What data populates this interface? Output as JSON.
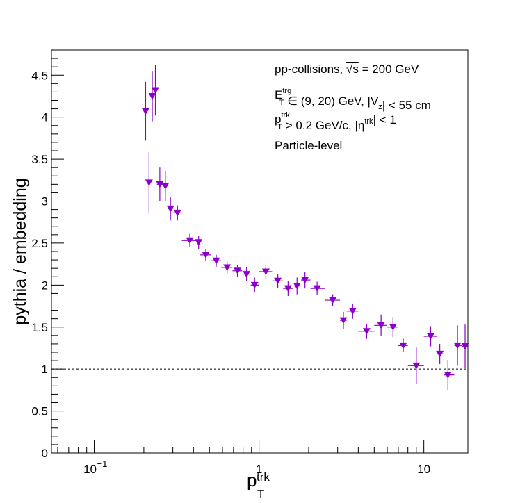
{
  "chart_data": {
    "type": "scatter",
    "title": "",
    "ylabel": "pythia / embedding",
    "xlabel": {
      "main": "p",
      "sub": "T",
      "sup": "trk"
    },
    "x_scale": "log",
    "xlim": [
      0.055,
      18.5
    ],
    "ylim": [
      0,
      4.8
    ],
    "x_ticks": [
      {
        "value": 0.1,
        "label": "10",
        "exp": "−1"
      },
      {
        "value": 1,
        "label": "1",
        "exp": ""
      },
      {
        "value": 10,
        "label": "10",
        "exp": ""
      }
    ],
    "y_ticks": [
      {
        "value": 0,
        "label": "0"
      },
      {
        "value": 0.5,
        "label": "0.5"
      },
      {
        "value": 1,
        "label": "1"
      },
      {
        "value": 1.5,
        "label": "1.5"
      },
      {
        "value": 2,
        "label": "2"
      },
      {
        "value": 2.5,
        "label": "2.5"
      },
      {
        "value": 3,
        "label": "3"
      },
      {
        "value": 3.5,
        "label": "3.5"
      },
      {
        "value": 4,
        "label": "4"
      },
      {
        "value": 4.5,
        "label": "4.5"
      }
    ],
    "reference_line": {
      "y": 1,
      "style": "dashed"
    },
    "marker": {
      "shape": "triangle-down",
      "color": "#8a00c8"
    },
    "points": [
      {
        "x": 0.205,
        "y": 4.07,
        "err": 0.35,
        "xerr": [
          0.2,
          0.21
        ]
      },
      {
        "x": 0.215,
        "y": 3.22,
        "err": 0.36,
        "xerr": [
          0.21,
          0.22
        ]
      },
      {
        "x": 0.225,
        "y": 4.25,
        "err": 0.3,
        "xerr": [
          0.22,
          0.23
        ]
      },
      {
        "x": 0.235,
        "y": 4.32,
        "err": 0.3,
        "xerr": [
          0.23,
          0.24
        ]
      },
      {
        "x": 0.25,
        "y": 3.2,
        "err": 0.2,
        "xerr": [
          0.24,
          0.26
        ]
      },
      {
        "x": 0.27,
        "y": 3.18,
        "err": 0.18,
        "xerr": [
          0.26,
          0.28
        ]
      },
      {
        "x": 0.29,
        "y": 2.91,
        "err": 0.14,
        "xerr": [
          0.28,
          0.3
        ]
      },
      {
        "x": 0.32,
        "y": 2.86,
        "err": 0.09,
        "xerr": [
          0.3,
          0.34
        ]
      },
      {
        "x": 0.38,
        "y": 2.53,
        "err": 0.08,
        "xerr": [
          0.34,
          0.42
        ]
      },
      {
        "x": 0.43,
        "y": 2.51,
        "err": 0.08,
        "xerr": [
          0.42,
          0.44
        ]
      },
      {
        "x": 0.475,
        "y": 2.36,
        "err": 0.07,
        "xerr": [
          0.44,
          0.51
        ]
      },
      {
        "x": 0.55,
        "y": 2.29,
        "err": 0.07,
        "xerr": [
          0.51,
          0.59
        ]
      },
      {
        "x": 0.64,
        "y": 2.21,
        "err": 0.07,
        "xerr": [
          0.59,
          0.69
        ]
      },
      {
        "x": 0.74,
        "y": 2.17,
        "err": 0.07,
        "xerr": [
          0.69,
          0.79
        ]
      },
      {
        "x": 0.84,
        "y": 2.13,
        "err": 0.08,
        "xerr": [
          0.79,
          0.89
        ]
      },
      {
        "x": 0.94,
        "y": 2.0,
        "err": 0.09,
        "xerr": [
          0.89,
          1.0
        ]
      },
      {
        "x": 1.1,
        "y": 2.16,
        "err": 0.08,
        "xerr": [
          1.0,
          1.2
        ]
      },
      {
        "x": 1.3,
        "y": 2.05,
        "err": 0.08,
        "xerr": [
          1.2,
          1.4
        ]
      },
      {
        "x": 1.5,
        "y": 1.96,
        "err": 0.09,
        "xerr": [
          1.4,
          1.6
        ]
      },
      {
        "x": 1.7,
        "y": 1.99,
        "err": 0.1,
        "xerr": [
          1.6,
          1.8
        ]
      },
      {
        "x": 1.9,
        "y": 2.06,
        "err": 0.1,
        "xerr": [
          1.8,
          2.05
        ]
      },
      {
        "x": 2.25,
        "y": 1.96,
        "err": 0.08,
        "xerr": [
          2.05,
          2.5
        ]
      },
      {
        "x": 2.8,
        "y": 1.82,
        "err": 0.07,
        "xerr": [
          2.5,
          3.1
        ]
      },
      {
        "x": 3.25,
        "y": 1.58,
        "err": 0.1,
        "xerr": [
          3.1,
          3.4
        ]
      },
      {
        "x": 3.7,
        "y": 1.69,
        "err": 0.09,
        "xerr": [
          3.4,
          4.0
        ]
      },
      {
        "x": 4.5,
        "y": 1.45,
        "err": 0.09,
        "xerr": [
          4.0,
          5.0
        ]
      },
      {
        "x": 5.5,
        "y": 1.52,
        "err": 0.13,
        "xerr": [
          5.0,
          6.0
        ]
      },
      {
        "x": 6.5,
        "y": 1.5,
        "err": 0.12,
        "xerr": [
          6.0,
          7.0
        ]
      },
      {
        "x": 7.5,
        "y": 1.28,
        "err": 0.08,
        "xerr": [
          7.0,
          8.0
        ]
      },
      {
        "x": 9.0,
        "y": 1.04,
        "err": 0.22,
        "xerr": [
          8.0,
          10.0
        ]
      },
      {
        "x": 11.0,
        "y": 1.39,
        "err": 0.12,
        "xerr": [
          10.0,
          12.0
        ]
      },
      {
        "x": 12.5,
        "y": 1.18,
        "err": 0.12,
        "xerr": [
          12.0,
          13.3
        ]
      },
      {
        "x": 14.0,
        "y": 0.93,
        "err": 0.18,
        "xerr": [
          13.3,
          15.3
        ]
      },
      {
        "x": 16.0,
        "y": 1.28,
        "err": 0.24,
        "xerr": [
          15.3,
          17.0
        ]
      },
      {
        "x": 17.8,
        "y": 1.27,
        "err": 0.26,
        "xerr": [
          17.0,
          18.5
        ]
      }
    ],
    "annotations": [
      {
        "id": "collisions",
        "parts": [
          {
            "t": "pp-collisions, "
          },
          {
            "t": "√s",
            "over": true
          },
          {
            "t": " = 200 GeV"
          }
        ]
      },
      {
        "id": "et-cut",
        "parts": [
          {
            "t": "E"
          },
          {
            "t": "T",
            "sub": true,
            "sup": "trg"
          },
          {
            "t": " ∈ (9, 20) GeV, |V"
          },
          {
            "t": "z",
            "sub": true
          },
          {
            "t": "| < 55 cm"
          }
        ]
      },
      {
        "id": "pt-cut",
        "parts": [
          {
            "t": "p"
          },
          {
            "t": "T",
            "sub": true,
            "sup": "trk"
          },
          {
            "t": " > 0.2 GeV/c, |η"
          },
          {
            "t": "trk",
            "supOnly": true
          },
          {
            "t": "| < 1"
          }
        ]
      },
      {
        "id": "level",
        "parts": [
          {
            "t": "Particle-level"
          }
        ]
      }
    ]
  }
}
